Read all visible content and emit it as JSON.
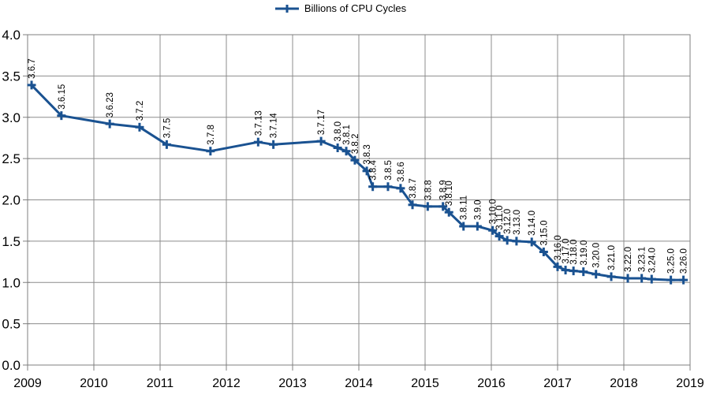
{
  "legend": {
    "label": "Billions of CPU Cycles",
    "marker": "plus-line-icon"
  },
  "colors": {
    "series": "#1a5291",
    "grid": "#8c8c8c",
    "plot_border": "#7f7f7f",
    "axis_text": "#000000",
    "point_label_text": "#000000",
    "background": "#ffffff"
  },
  "chart_data": {
    "type": "line",
    "title": "",
    "legend_entries": [
      "Billions of CPU Cycles"
    ],
    "legend_position": "top-center",
    "grid": true,
    "marker": "plus",
    "point_labels_rotated_90": true,
    "xlabel": "",
    "ylabel": "",
    "xlim": [
      2009,
      2019
    ],
    "ylim": [
      0.0,
      4.0
    ],
    "x_ticks": [
      2009,
      2010,
      2011,
      2012,
      2013,
      2014,
      2015,
      2016,
      2017,
      2018,
      2019
    ],
    "y_ticks": [
      0.0,
      0.5,
      1.0,
      1.5,
      2.0,
      2.5,
      3.0,
      3.5,
      4.0
    ],
    "y_tick_labels": [
      "0.0",
      "0.5",
      "1.0",
      "1.5",
      "2.0",
      "2.5",
      "3.0",
      "3.5",
      "4.0"
    ],
    "series": [
      {
        "name": "Billions of CPU Cycles",
        "points": [
          {
            "label": "3.6.7",
            "x": 2009.06,
            "y": 3.39
          },
          {
            "label": "3.6.15",
            "x": 2009.51,
            "y": 3.02
          },
          {
            "label": "3.6.23",
            "x": 2010.24,
            "y": 2.92
          },
          {
            "label": "3.7.2",
            "x": 2010.69,
            "y": 2.88
          },
          {
            "label": "3.7.5",
            "x": 2011.1,
            "y": 2.67
          },
          {
            "label": "3.7.8",
            "x": 2011.76,
            "y": 2.59
          },
          {
            "label": "3.7.13",
            "x": 2012.48,
            "y": 2.7
          },
          {
            "label": "3.7.14",
            "x": 2012.71,
            "y": 2.67
          },
          {
            "label": "3.7.17",
            "x": 2013.43,
            "y": 2.71
          },
          {
            "label": "3.8.0",
            "x": 2013.68,
            "y": 2.63
          },
          {
            "label": "3.8.1",
            "x": 2013.81,
            "y": 2.59
          },
          {
            "label": "3.8.2",
            "x": 2013.94,
            "y": 2.48
          },
          {
            "label": "3.8.3",
            "x": 2014.12,
            "y": 2.35
          },
          {
            "label": "3.8.4",
            "x": 2014.21,
            "y": 2.16
          },
          {
            "label": "3.8.5",
            "x": 2014.44,
            "y": 2.16
          },
          {
            "label": "3.8.6",
            "x": 2014.63,
            "y": 2.14
          },
          {
            "label": "3.8.7",
            "x": 2014.81,
            "y": 1.94
          },
          {
            "label": "3.8.8",
            "x": 2015.04,
            "y": 1.92
          },
          {
            "label": "3.8.9",
            "x": 2015.27,
            "y": 1.92
          },
          {
            "label": "3.8.10",
            "x": 2015.36,
            "y": 1.85
          },
          {
            "label": "3.8.11",
            "x": 2015.58,
            "y": 1.68
          },
          {
            "label": "3.9.0",
            "x": 2015.79,
            "y": 1.68
          },
          {
            "label": "3.10.0",
            "x": 2016.02,
            "y": 1.63
          },
          {
            "label": "3.11.0",
            "x": 2016.12,
            "y": 1.56
          },
          {
            "label": "3.12.0",
            "x": 2016.24,
            "y": 1.51
          },
          {
            "label": "3.13.0",
            "x": 2016.38,
            "y": 1.5
          },
          {
            "label": "3.14.0",
            "x": 2016.61,
            "y": 1.49
          },
          {
            "label": "3.15.0",
            "x": 2016.79,
            "y": 1.37
          },
          {
            "label": "3.16.0",
            "x": 2017.0,
            "y": 1.19
          },
          {
            "label": "3.17.0",
            "x": 2017.12,
            "y": 1.15
          },
          {
            "label": "3.18.0",
            "x": 2017.24,
            "y": 1.14
          },
          {
            "label": "3.19.0",
            "x": 2017.39,
            "y": 1.13
          },
          {
            "label": "3.20.0",
            "x": 2017.58,
            "y": 1.1
          },
          {
            "label": "3.21.0",
            "x": 2017.81,
            "y": 1.07
          },
          {
            "label": "3.22.0",
            "x": 2018.06,
            "y": 1.05
          },
          {
            "label": "3.23.1",
            "x": 2018.27,
            "y": 1.05
          },
          {
            "label": "3.24.0",
            "x": 2018.42,
            "y": 1.04
          },
          {
            "label": "3.25.0",
            "x": 2018.71,
            "y": 1.03
          },
          {
            "label": "3.26.0",
            "x": 2018.9,
            "y": 1.03
          }
        ]
      }
    ]
  }
}
